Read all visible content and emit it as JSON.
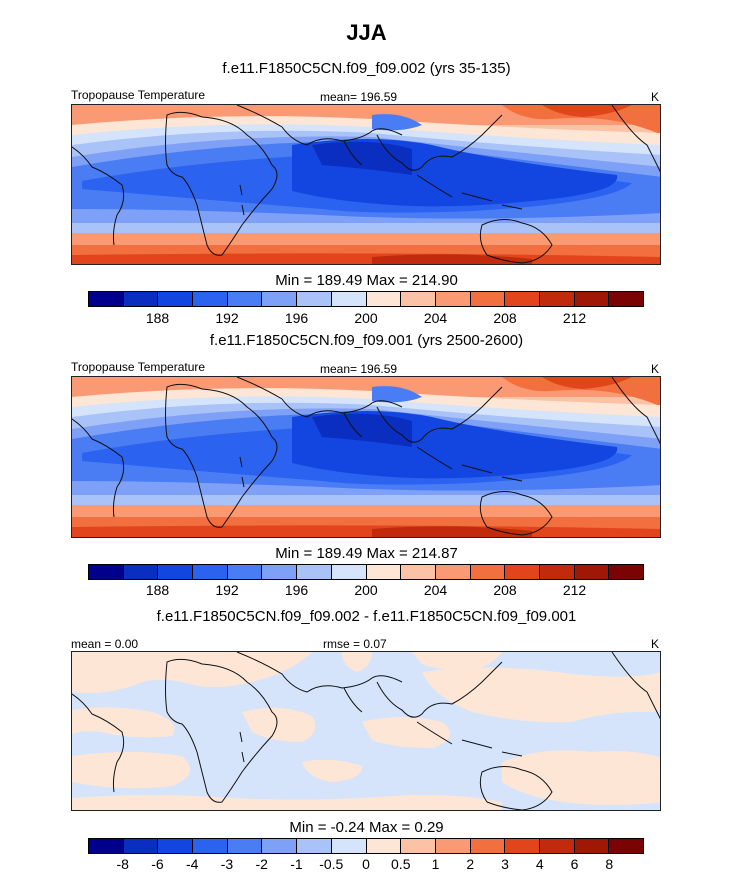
{
  "title": "JJA",
  "colors": {
    "warm_scale": [
      "#00008c",
      "#0a2fc0",
      "#1346e0",
      "#2b62f0",
      "#4a7cf3",
      "#7ea0f6",
      "#a9c2f8",
      "#d5e4fb",
      "#fde6d6",
      "#fcc2a5",
      "#f99a74",
      "#f2703f",
      "#e2441c",
      "#c22a0d",
      "#a01706",
      "#7a0303"
    ],
    "diff_scale": [
      "#00008c",
      "#0a2fc0",
      "#1346e0",
      "#2b62f0",
      "#4a7cf3",
      "#7ea0f6",
      "#a9c2f8",
      "#d5e4fb",
      "#fde6d6",
      "#fcc2a5",
      "#f99a74",
      "#f2703f",
      "#e2441c",
      "#c22a0d",
      "#a01706",
      "#7a0303"
    ]
  },
  "panels": [
    {
      "subtitle": "f.e11.F1850C5CN.f09_f09.002 (yrs 35-135)",
      "left_label": "Tropopause Temperature",
      "center_label": "mean= 196.59",
      "right_label": "K",
      "minmax": "Min = 189.49 Max = 214.90",
      "ticks": [
        "188",
        "192",
        "196",
        "200",
        "204",
        "208",
        "212"
      ]
    },
    {
      "subtitle": "f.e11.F1850C5CN.f09_f09.001 (yrs 2500-2600)",
      "left_label": "Tropopause Temperature",
      "center_label": "mean= 196.59",
      "right_label": "K",
      "minmax": "Min = 189.49 Max = 214.87",
      "ticks": [
        "188",
        "192",
        "196",
        "200",
        "204",
        "208",
        "212"
      ]
    },
    {
      "subtitle": "f.e11.F1850C5CN.f09_f09.002 - f.e11.F1850C5CN.f09_f09.001",
      "left_label": "mean =   0.00",
      "center_label": "rmse =   0.07",
      "right_label": "K",
      "minmax": "Min =  -0.24 Max =   0.29",
      "ticks": [
        "-8",
        "-6",
        "-4",
        "-3",
        "-2",
        "-1",
        "-0.5",
        "0",
        "0.5",
        "1",
        "2",
        "3",
        "4",
        "6",
        "8"
      ]
    }
  ]
}
